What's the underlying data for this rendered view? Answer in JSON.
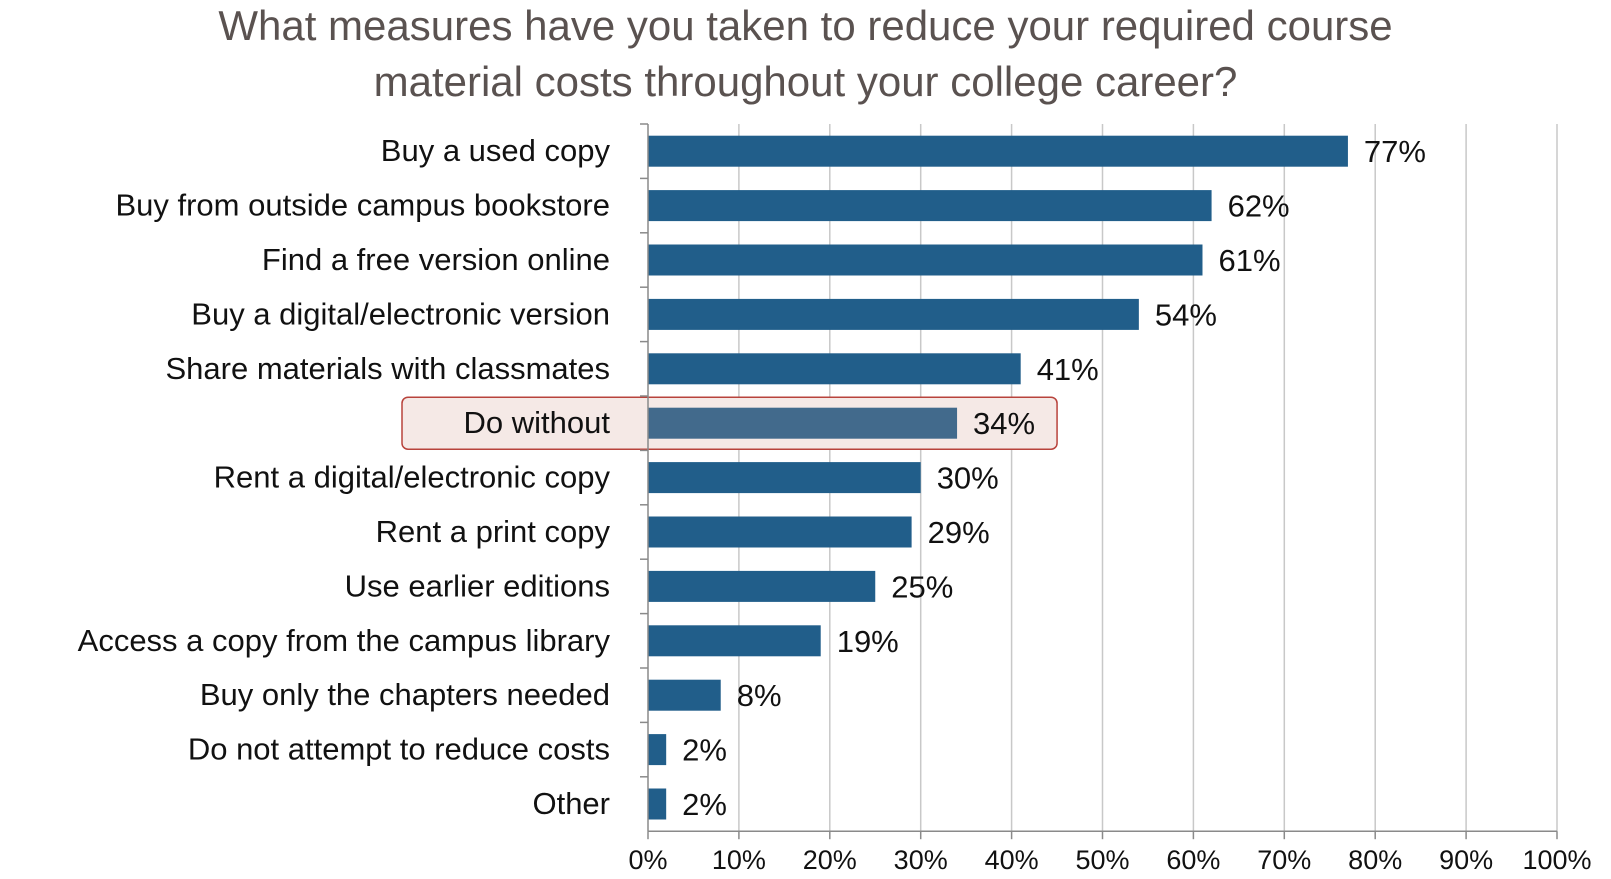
{
  "chart_data": {
    "type": "bar",
    "orientation": "horizontal",
    "title_lines": [
      "What measures have you taken to reduce your required course",
      "material costs throughout your college career?"
    ],
    "categories": [
      "Buy a used copy",
      "Buy from outside campus bookstore",
      "Find a free version online",
      "Buy a digital/electronic version",
      "Share materials with classmates",
      "Do without",
      "Rent a digital/electronic copy",
      "Rent a print copy",
      "Use earlier editions",
      "Access a copy from the campus library",
      "Buy only the chapters needed",
      "Do not attempt to reduce costs",
      "Other"
    ],
    "values": [
      77,
      62,
      61,
      54,
      41,
      34,
      30,
      29,
      25,
      19,
      8,
      2,
      2
    ],
    "value_labels": [
      "77%",
      "62%",
      "61%",
      "54%",
      "41%",
      "34%",
      "30%",
      "29%",
      "25%",
      "19%",
      "8%",
      "2%",
      "2%"
    ],
    "x_ticks": [
      "0%",
      "10%",
      "20%",
      "30%",
      "40%",
      "50%",
      "60%",
      "70%",
      "80%",
      "90%",
      "100%"
    ],
    "xlim": [
      0,
      100
    ],
    "grid": "vertical",
    "highlighted_category": "Do without",
    "colors": {
      "bar": "#215e8a",
      "bar_highlight": "#426a8c",
      "highlight_fill": "#f5e9e6",
      "highlight_border": "#b8433c",
      "grid": "#c8c8c8",
      "title": "#5a5250",
      "text": "#111111"
    }
  }
}
